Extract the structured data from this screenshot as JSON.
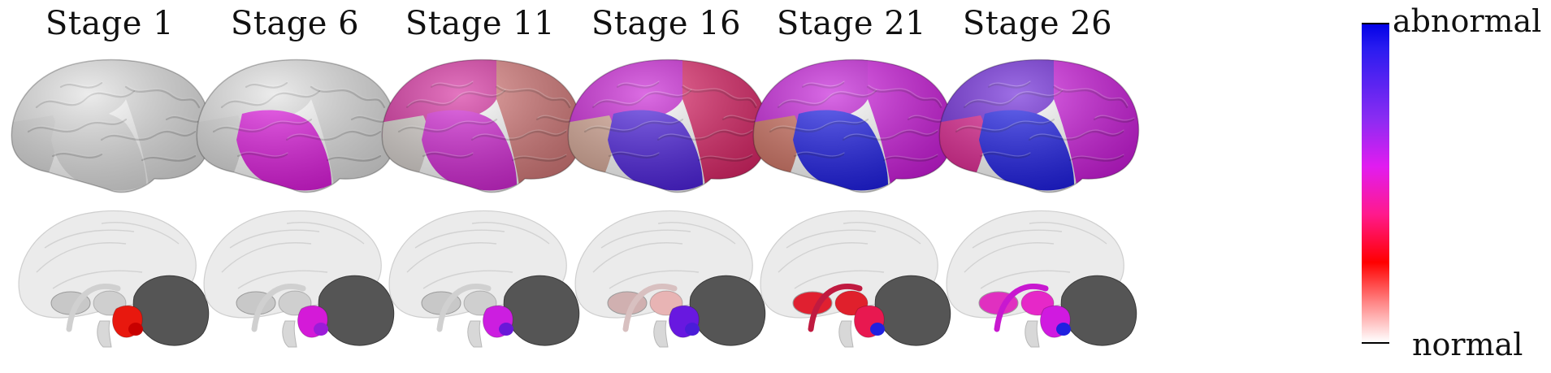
{
  "stages": [
    {
      "title": "Stage 1",
      "cortex": {
        "frontal": "#e2e2e2",
        "parietal": "#e2e2e2",
        "occipital": "#dadada",
        "temporal": "#e2e2e2"
      },
      "subcortex": {
        "thalamus": "#cfcfcf",
        "hippocampus": "#e8180e",
        "putamen": "#c8c8c8",
        "caudate": "#d0d0d0",
        "accent": "#c80000"
      }
    },
    {
      "title": "Stage 6",
      "cortex": {
        "frontal": "#e2e2e2",
        "parietal": "#e2e2e2",
        "occipital": "#dadada",
        "temporal": "#e018e0"
      },
      "subcortex": {
        "thalamus": "#cfcfcf",
        "hippocampus": "#d41ad8",
        "putamen": "#c8c8c8",
        "caudate": "#d0d0d0",
        "accent": "#9b1cd8"
      }
    },
    {
      "title": "Stage 11",
      "cortex": {
        "frontal": "#d52c9e",
        "parietal": "#d87a7a",
        "occipital": "#d6d0cc",
        "temporal": "#d424d6"
      },
      "subcortex": {
        "thalamus": "#cfcfcf",
        "hippocampus": "#cc1ee0",
        "putamen": "#c8c8c8",
        "caudate": "#d0d0d0",
        "accent": "#6a18d8"
      }
    },
    {
      "title": "Stage 16",
      "cortex": {
        "frontal": "#c81ed4",
        "parietal": "#e02468",
        "occipital": "#d8a896",
        "temporal": "#4b1ee0"
      },
      "subcortex": {
        "thalamus": "#e8b4b4",
        "hippocampus": "#6818e0",
        "putamen": "#d0b0b0",
        "caudate": "#d8c0c0",
        "accent": "#4a1cd8"
      }
    },
    {
      "title": "Stage 21",
      "cortex": {
        "frontal": "#c41ad8",
        "parietal": "#d01ae0",
        "occipital": "#d07060",
        "temporal": "#1a1ae8"
      },
      "subcortex": {
        "thalamus": "#e0202c",
        "hippocampus": "#e81850",
        "putamen": "#e02030",
        "caudate": "#c01a40",
        "accent": "#2020e0"
      }
    },
    {
      "title": "Stage 26",
      "cortex": {
        "frontal": "#6a22d8",
        "parietal": "#d01ae0",
        "occipital": "#e02090",
        "temporal": "#1a1ae8"
      },
      "subcortex": {
        "thalamus": "#e628c8",
        "hippocampus": "#d01ae0",
        "putamen": "#e030c0",
        "caudate": "#c818d0",
        "accent": "#2020e0"
      }
    }
  ],
  "colorbar": {
    "top_label": "abnormal",
    "bottom_label": "normal"
  }
}
